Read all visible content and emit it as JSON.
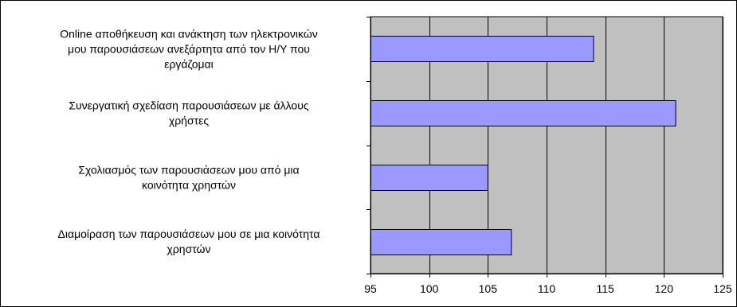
{
  "chart_data": {
    "type": "bar",
    "orientation": "horizontal",
    "title": "",
    "xlabel": "",
    "ylabel": "",
    "categories": [
      "Online αποθήκευση και ανάκτηση των ηλεκτρονικών μου παρουσιάσεων ανεξάρτητα από τον Η/Υ που εργάζομαι",
      "Συνεργατική σχεδίαση παρουσιάσεων με άλλους χρήστες",
      "Σχολιασμός των παρουσιάσεων μου από μια κοινότητα χρηστών",
      "Διαμοίραση των παρουσιάσεων μου σε μια κοινότητα χρηστών"
    ],
    "category_lines": [
      [
        "Online αποθήκευση και ανάκτηση των ηλεκτρονικών",
        "μου παρουσιάσεων ανεξάρτητα από τον Η/Υ που",
        "εργάζομαι"
      ],
      [
        "Συνεργατική σχεδίαση παρουσιάσεων με άλλους",
        "χρήστες"
      ],
      [
        "Σχολιασμός των παρουσιάσεων μου από μια",
        "κοινότητα χρηστών"
      ],
      [
        "Διαμοίραση των παρουσιάσεων μου σε μια κοινότητα",
        "χρηστών"
      ]
    ],
    "values": [
      114,
      121,
      105,
      107
    ],
    "xlim": [
      95,
      125
    ],
    "xticks": [
      95,
      100,
      105,
      110,
      115,
      120,
      125
    ],
    "grid": "vertical",
    "legend": "none",
    "colors": {
      "bar_fill": "#9999ff",
      "bar_stroke": "#000000",
      "plot_background": "#c0c0c0",
      "gridline": "#000000"
    }
  }
}
